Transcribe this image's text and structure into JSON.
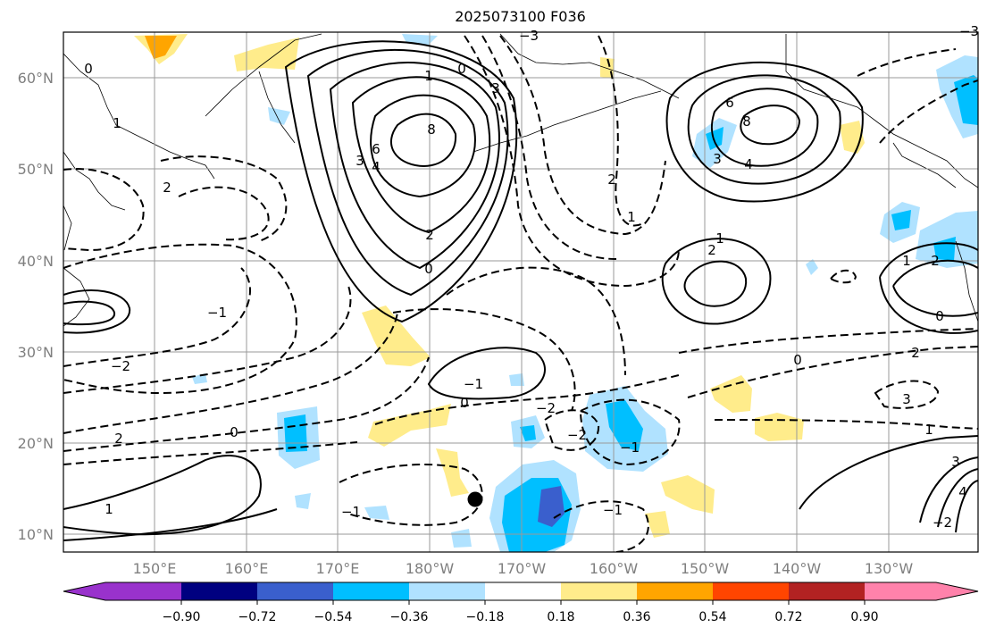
{
  "title": "2025073100 F036",
  "map": {
    "lon_ticks": [
      "150°E",
      "160°E",
      "170°E",
      "180°W",
      "170°W",
      "160°W",
      "150°W",
      "140°W",
      "130°W"
    ],
    "lat_ticks": [
      "60°N",
      "50°N",
      "40°N",
      "30°N",
      "20°N",
      "10°N"
    ],
    "marker": "storm-center-dot"
  },
  "colorbar": {
    "labels": [
      "−0.90",
      "−0.72",
      "−0.54",
      "−0.36",
      "−0.18",
      "0.18",
      "0.36",
      "0.54",
      "0.72",
      "0.90"
    ],
    "colors": [
      "#9932cc",
      "#000080",
      "#3a5fcd",
      "#00bfff",
      "#b0e2ff",
      "#ffffff",
      "#ffec8b",
      "#ffa500",
      "#ff4500",
      "#b22222",
      "#ff82ab"
    ],
    "extend": "both"
  },
  "contour_labels": [
    "0",
    "1",
    "2",
    "3",
    "4",
    "6",
    "8",
    "0",
    "1",
    "2",
    "3",
    "2",
    "1",
    "0",
    "1",
    "2",
    "3",
    "4",
    "6",
    "8",
    "−1",
    "−2",
    "−3",
    "−2",
    "−1",
    "0",
    "1",
    "2",
    "3",
    "0",
    "1",
    "2",
    "−1",
    "−2",
    "−3",
    "−1",
    "0",
    "1",
    "2",
    "3",
    "4",
    "0",
    "−1",
    "−2"
  ]
}
